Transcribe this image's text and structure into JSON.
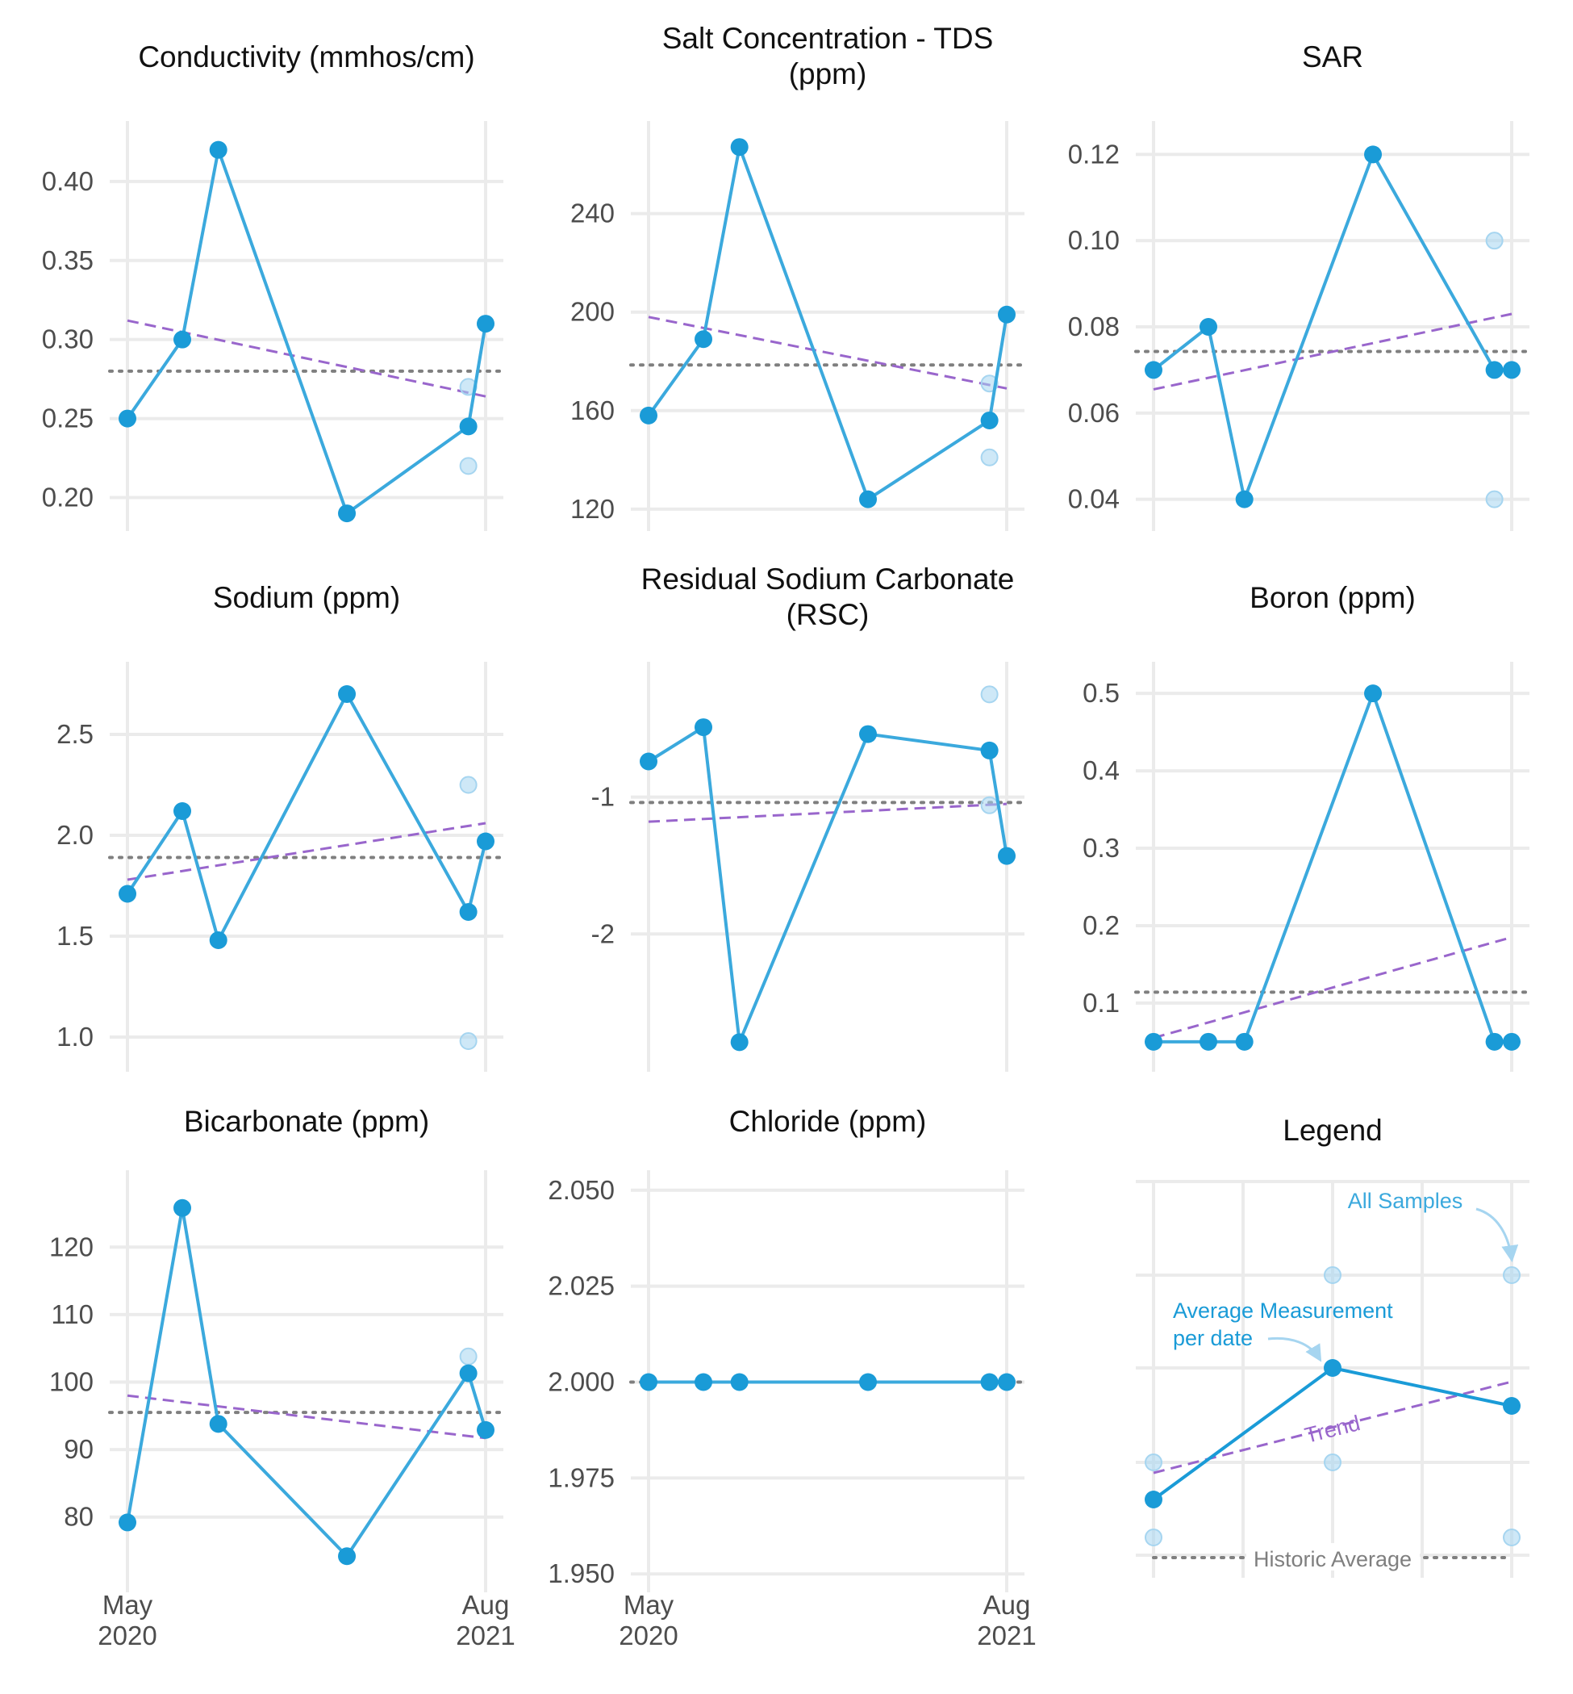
{
  "colors": {
    "average": "#1a9bd7",
    "average_line": "#3ba9dd",
    "sample": "#a6d5f0",
    "trend": "#9966cc",
    "historic": "#7f7f7f",
    "grid": "#ebebeb",
    "text": "#111111",
    "tick": "#4d4d4d"
  },
  "x_dates": [
    "2020-05-01",
    "2020-07-10",
    "2020-08-25",
    "2021-02-05",
    "2021-07-10",
    "2021-08-01"
  ],
  "x_ticks": [
    {
      "date": "2020-05-01",
      "month": "May",
      "year": "2020"
    },
    {
      "date": "2021-08-01",
      "month": "Aug",
      "year": "2021"
    }
  ],
  "chart_data": [
    {
      "type": "line",
      "title": "Conductivity (mmhos/cm)",
      "ylim": [
        0.188,
        0.428
      ],
      "yticks": [
        0.2,
        0.25,
        0.3,
        0.35,
        0.4
      ],
      "ytick_labels": [
        "0.20",
        "0.25",
        "0.30",
        "0.35",
        "0.40"
      ],
      "x": [
        "2020-05-01",
        "2020-07-10",
        "2020-08-25",
        "2021-02-05",
        "2021-07-10",
        "2021-08-01"
      ],
      "y": [
        0.25,
        0.3,
        0.42,
        0.19,
        0.245,
        0.31
      ],
      "samples": [
        {
          "x": "2021-07-10",
          "y": 0.27
        },
        {
          "x": "2021-07-10",
          "y": 0.22
        }
      ],
      "trend": {
        "start": 0.312,
        "end": 0.264
      },
      "historic_average": 0.28
    },
    {
      "type": "line",
      "title": "Salt Concentration - TDS (ppm)",
      "ylim": [
        117,
        271
      ],
      "yticks": [
        120,
        160,
        200,
        240
      ],
      "ytick_labels": [
        "120",
        "160",
        "200",
        "240"
      ],
      "x": [
        "2020-05-01",
        "2020-07-10",
        "2020-08-25",
        "2021-02-05",
        "2021-07-10",
        "2021-08-01"
      ],
      "y": [
        158,
        189,
        267,
        124,
        156,
        199
      ],
      "samples": [
        {
          "x": "2021-07-10",
          "y": 171
        },
        {
          "x": "2021-07-10",
          "y": 141
        }
      ],
      "trend": {
        "start": 198,
        "end": 169
      },
      "historic_average": 178.5
    },
    {
      "type": "line",
      "title": "SAR",
      "ylim": [
        0.036,
        0.124
      ],
      "yticks": [
        0.04,
        0.06,
        0.08,
        0.1,
        0.12
      ],
      "ytick_labels": [
        "0.04",
        "0.06",
        "0.08",
        "0.10",
        "0.12"
      ],
      "x": [
        "2020-05-01",
        "2020-07-10",
        "2020-08-25",
        "2021-02-05",
        "2021-07-10",
        "2021-08-01"
      ],
      "y": [
        0.07,
        0.08,
        0.04,
        0.12,
        0.07,
        0.07
      ],
      "samples": [
        {
          "x": "2021-07-10",
          "y": 0.1
        },
        {
          "x": "2021-07-10",
          "y": 0.04
        }
      ],
      "trend": {
        "start": 0.0655,
        "end": 0.083
      },
      "historic_average": 0.0743
    },
    {
      "type": "line",
      "title": "Sodium (ppm)",
      "ylim": [
        0.9,
        2.78
      ],
      "yticks": [
        1.0,
        1.5,
        2.0,
        2.5
      ],
      "ytick_labels": [
        "1.0",
        "1.5",
        "2.0",
        "2.5"
      ],
      "x": [
        "2020-05-01",
        "2020-07-10",
        "2020-08-25",
        "2021-02-05",
        "2021-07-10",
        "2021-08-01"
      ],
      "y": [
        1.71,
        2.12,
        1.48,
        2.7,
        1.62,
        1.97
      ],
      "samples": [
        {
          "x": "2021-07-10",
          "y": 2.25
        },
        {
          "x": "2021-07-10",
          "y": 0.98
        }
      ],
      "trend": {
        "start": 1.78,
        "end": 2.06
      },
      "historic_average": 1.89
    },
    {
      "type": "line",
      "title": "Residual Sodium Carbonate (RSC)",
      "ylim": [
        -2.9,
        -0.13
      ],
      "yticks": [
        -2,
        -1
      ],
      "ytick_labels": [
        "-2",
        "-1"
      ],
      "x": [
        "2020-05-01",
        "2020-07-10",
        "2020-08-25",
        "2021-02-05",
        "2021-07-10",
        "2021-08-01"
      ],
      "y": [
        -0.74,
        -0.49,
        -2.79,
        -0.54,
        -0.66,
        -1.43
      ],
      "samples": [
        {
          "x": "2021-07-10",
          "y": -0.25
        },
        {
          "x": "2021-07-10",
          "y": -1.06
        }
      ],
      "trend": {
        "start": -1.18,
        "end": -1.05
      },
      "historic_average": -1.04
    },
    {
      "type": "line",
      "title": "Boron (ppm)",
      "ylim": [
        0.03,
        0.52
      ],
      "yticks": [
        0.1,
        0.2,
        0.3,
        0.4,
        0.5
      ],
      "ytick_labels": [
        "0.1",
        "0.2",
        "0.3",
        "0.4",
        "0.5"
      ],
      "x": [
        "2020-05-01",
        "2020-07-10",
        "2020-08-25",
        "2021-02-05",
        "2021-07-10",
        "2021-08-01"
      ],
      "y": [
        0.05,
        0.05,
        0.05,
        0.5,
        0.05,
        0.05
      ],
      "samples": [],
      "trend": {
        "start": 0.055,
        "end": 0.185
      },
      "historic_average": 0.114
    },
    {
      "type": "line",
      "title": "Bicarbonate (ppm)",
      "ylim": [
        71,
        129
      ],
      "yticks": [
        80,
        90,
        100,
        110,
        120
      ],
      "ytick_labels": [
        "80",
        "90",
        "100",
        "110",
        "120"
      ],
      "x": [
        "2020-05-01",
        "2020-07-10",
        "2020-08-25",
        "2021-02-05",
        "2021-07-10",
        "2021-08-01"
      ],
      "y": [
        79.2,
        125.8,
        93.8,
        74.2,
        101.3,
        92.9
      ],
      "samples": [
        {
          "x": "2021-07-10",
          "y": 103.8
        }
      ],
      "trend": {
        "start": 98.0,
        "end": 91.7
      },
      "historic_average": 95.5
    },
    {
      "type": "line",
      "title": "Chloride (ppm)",
      "ylim": [
        1.949,
        2.051
      ],
      "yticks": [
        1.95,
        1.975,
        2.0,
        2.025,
        2.05
      ],
      "ytick_labels": [
        "1.950",
        "1.975",
        "2.000",
        "2.025",
        "2.050"
      ],
      "x": [
        "2020-05-01",
        "2020-07-10",
        "2020-08-25",
        "2021-02-05",
        "2021-07-10",
        "2021-08-01"
      ],
      "y": [
        2.0,
        2.0,
        2.0,
        2.0,
        2.0,
        2.0
      ],
      "samples": [],
      "trend": {
        "start": 2.0,
        "end": 2.0
      },
      "historic_average": 2.0
    }
  ],
  "legend": {
    "title": "Legend",
    "all_samples": "All Samples",
    "average_line1": "Average Measurement",
    "average_line2": "per date",
    "trend": "Trend",
    "historic": "Historic Average"
  }
}
